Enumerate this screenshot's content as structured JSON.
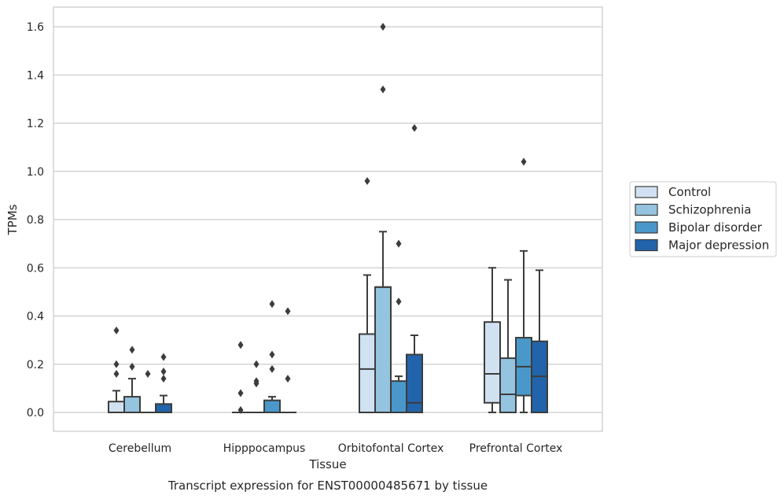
{
  "chart_data": {
    "type": "box",
    "xlabel": "Tissue",
    "ylabel": "TPMs",
    "caption": "Transcript expression for ENST00000485671 by tissue",
    "ylim": [
      -0.08,
      1.68
    ],
    "yticks": [
      "0.0",
      "0.2",
      "0.4",
      "0.6",
      "0.8",
      "1.0",
      "1.2",
      "1.4",
      "1.6"
    ],
    "ytick_values": [
      0.0,
      0.2,
      0.4,
      0.6,
      0.8,
      1.0,
      1.2,
      1.4,
      1.6
    ],
    "grid": "horizontal",
    "legend_placement": "right",
    "categories": [
      "Cerebellum",
      "Hipppocampus",
      "Orbitofontal Cortex",
      "Prefrontal Cortex"
    ],
    "series": [
      {
        "name": "Control",
        "color": "#d0e1f2",
        "boxes": [
          {
            "q1": 0.0,
            "median": 0.0,
            "q3": 0.045,
            "whislo": 0.0,
            "whishi": 0.09,
            "fliers": [
              0.16,
              0.2,
              0.34
            ]
          },
          {
            "q1": 0.0,
            "median": 0.0,
            "q3": 0.0,
            "whislo": 0.0,
            "whishi": 0.0,
            "fliers": [
              0.01,
              0.08,
              0.28
            ]
          },
          {
            "q1": 0.0,
            "median": 0.18,
            "q3": 0.325,
            "whislo": 0.0,
            "whishi": 0.57,
            "fliers": [
              0.96
            ]
          },
          {
            "q1": 0.04,
            "median": 0.16,
            "q3": 0.375,
            "whislo": 0.0,
            "whishi": 0.6,
            "fliers": []
          }
        ]
      },
      {
        "name": "Schizophrenia",
        "color": "#94c4df",
        "boxes": [
          {
            "q1": 0.0,
            "median": 0.0,
            "q3": 0.065,
            "whislo": 0.0,
            "whishi": 0.14,
            "fliers": [
              0.19,
              0.26
            ]
          },
          {
            "q1": 0.0,
            "median": 0.0,
            "q3": 0.0,
            "whislo": 0.0,
            "whishi": 0.0,
            "fliers": [
              0.12,
              0.13,
              0.2
            ]
          },
          {
            "q1": 0.0,
            "median": 0.52,
            "q3": 0.52,
            "whislo": 0.0,
            "whishi": 0.75,
            "fliers": [
              1.34,
              1.6
            ]
          },
          {
            "q1": 0.0,
            "median": 0.075,
            "q3": 0.225,
            "whislo": 0.0,
            "whishi": 0.55,
            "fliers": []
          }
        ]
      },
      {
        "name": "Bipolar disorder",
        "color": "#4a98c9",
        "boxes": [
          {
            "q1": 0.0,
            "median": 0.0,
            "q3": 0.0,
            "whislo": 0.0,
            "whishi": 0.0,
            "fliers": [
              0.16
            ]
          },
          {
            "q1": 0.0,
            "median": 0.0,
            "q3": 0.05,
            "whislo": 0.0,
            "whishi": 0.065,
            "fliers": [
              0.18,
              0.24,
              0.45
            ]
          },
          {
            "q1": 0.0,
            "median": 0.0,
            "q3": 0.13,
            "whislo": 0.0,
            "whishi": 0.15,
            "fliers": [
              0.46,
              0.7
            ]
          },
          {
            "q1": 0.07,
            "median": 0.19,
            "q3": 0.31,
            "whislo": 0.0,
            "whishi": 0.67,
            "fliers": [
              1.04
            ]
          }
        ]
      },
      {
        "name": "Major depression",
        "color": "#2164ab",
        "boxes": [
          {
            "q1": 0.0,
            "median": 0.0,
            "q3": 0.035,
            "whislo": 0.0,
            "whishi": 0.07,
            "fliers": [
              0.14,
              0.17,
              0.23
            ]
          },
          {
            "q1": 0.0,
            "median": 0.0,
            "q3": 0.0,
            "whislo": 0.0,
            "whishi": 0.0,
            "fliers": [
              0.14,
              0.42
            ]
          },
          {
            "q1": 0.0,
            "median": 0.04,
            "q3": 0.24,
            "whislo": 0.0,
            "whishi": 0.32,
            "fliers": [
              1.18
            ]
          },
          {
            "q1": 0.0,
            "median": 0.15,
            "q3": 0.295,
            "whislo": 0.0,
            "whishi": 0.59,
            "fliers": []
          }
        ]
      }
    ]
  }
}
